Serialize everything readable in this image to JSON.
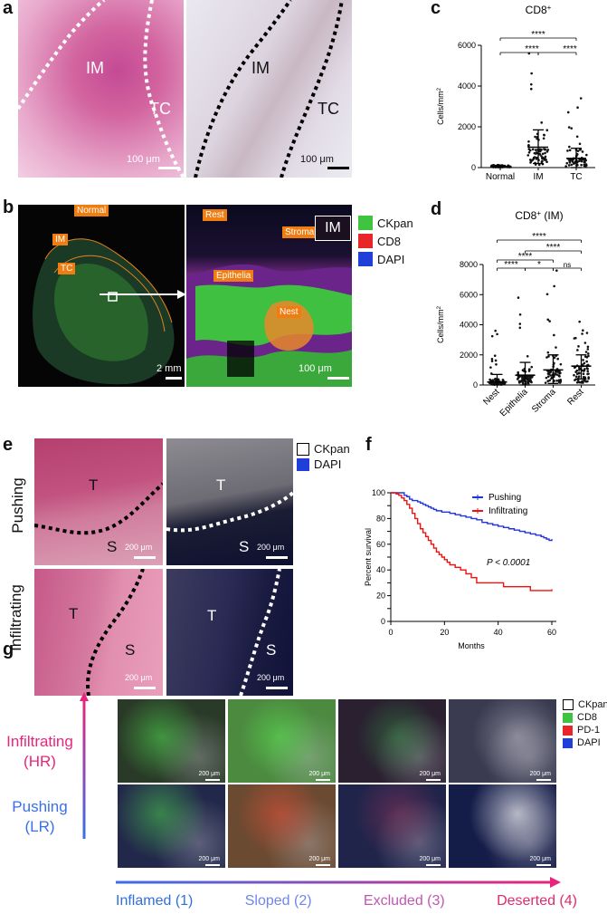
{
  "panels": {
    "a": "a",
    "b": "b",
    "c": "c",
    "d": "d",
    "e": "e",
    "f": "f",
    "g": "g"
  },
  "panel_a": {
    "left": {
      "im": "IM",
      "tc": "TC",
      "scale": "100 μm"
    },
    "right": {
      "im": "IM",
      "tc": "TC",
      "scale": "100 μm"
    }
  },
  "panel_b": {
    "left_tags": {
      "normal": "Normal",
      "im": "IM",
      "tc": "TC"
    },
    "left_scale": "2 mm",
    "right_tags": {
      "rest": "Rest",
      "stroma": "Stroma",
      "epithelia": "Epithelia",
      "nest": "Nest"
    },
    "right_box": "IM",
    "right_scale": "100 μm",
    "legend": [
      {
        "label": "CKpan",
        "color": "#3ec43e"
      },
      {
        "label": "CD8",
        "color": "#e8262a"
      },
      {
        "label": "DAPI",
        "color": "#1f3fd8"
      }
    ]
  },
  "panel_e": {
    "row_labels": {
      "top": "Pushing",
      "bottom": "Infiltrating"
    },
    "tiles": {
      "tl": {
        "t": "T",
        "s": "S",
        "scale": "200 μm"
      },
      "tr": {
        "t": "T",
        "s": "S",
        "scale": "200 μm"
      },
      "bl": {
        "t": "T",
        "s": "S",
        "scale": "200 μm"
      },
      "br": {
        "t": "T",
        "s": "S",
        "scale": "200 μm"
      }
    },
    "legend": [
      {
        "label": "CKpan",
        "color": "#ffffff"
      },
      {
        "label": "DAPI",
        "color": "#1f3fd8"
      }
    ]
  },
  "panel_g": {
    "side_top": [
      "Infiltrating",
      "(HR)"
    ],
    "side_bottom": [
      "Pushing",
      "(LR)"
    ],
    "scale": "200 μm",
    "categories": [
      "Inflamed (1)",
      "Sloped (2)",
      "Excluded (3)",
      "Deserted (4)"
    ],
    "category_colors": [
      "#2f6fe0",
      "#6f86e8",
      "#c257b0",
      "#e02a6e"
    ],
    "legend": [
      {
        "label": "CKpan",
        "color": "#ffffff"
      },
      {
        "label": "CD8",
        "color": "#3ec43e"
      },
      {
        "label": "PD-1",
        "color": "#e8262a"
      },
      {
        "label": "DAPI",
        "color": "#1f3fd8"
      }
    ]
  },
  "chart_data": [
    {
      "id": "c",
      "type": "scatter",
      "title": "CD8+",
      "ylabel": "Cells/mm2",
      "categories": [
        "Normal",
        "IM",
        "TC"
      ],
      "ylim": [
        0,
        6000
      ],
      "yticks": [
        "0",
        "2000",
        "4000",
        "6000"
      ],
      "ytick_values": [
        0,
        2000,
        4000,
        6000
      ],
      "means": [
        60,
        1000,
        450
      ],
      "sd": [
        [
          20,
          110
        ],
        [
          200,
          1850
        ],
        [
          0,
          950
        ]
      ],
      "max_points": [
        120,
        5600,
        3400
      ],
      "significance": [
        {
          "label": "****",
          "pair": [
            "Normal",
            "TC"
          ]
        },
        {
          "label": "****",
          "pair": [
            "Normal",
            "IM"
          ]
        },
        {
          "label": "****",
          "pair": [
            "IM",
            "TC"
          ]
        }
      ]
    },
    {
      "id": "d",
      "type": "scatter",
      "title": "CD8+ (IM)",
      "ylabel": "Cells/mm2",
      "categories": [
        "Nest",
        "Epithelia",
        "Stroma",
        "Rest"
      ],
      "ylim": [
        0,
        8000
      ],
      "yticks": [
        "0",
        "2000",
        "4000",
        "6000",
        "8000"
      ],
      "ytick_values": [
        0,
        2000,
        4000,
        6000,
        8000
      ],
      "means": [
        200,
        650,
        1000,
        1250
      ],
      "sd": [
        [
          0,
          700
        ],
        [
          0,
          1500
        ],
        [
          100,
          2000
        ],
        [
          400,
          2000
        ]
      ],
      "max_points": [
        3600,
        5800,
        7600,
        4200
      ],
      "significance": [
        {
          "label": "****",
          "pair": [
            "Nest",
            "Rest"
          ]
        },
        {
          "label": "****",
          "pair": [
            "Epithelia",
            "Rest"
          ]
        },
        {
          "label": "****",
          "pair": [
            "Nest",
            "Stroma"
          ]
        },
        {
          "label": "****",
          "pair": [
            "Nest",
            "Epithelia"
          ]
        },
        {
          "label": "*",
          "pair": [
            "Epithelia",
            "Stroma"
          ]
        },
        {
          "label": "ns",
          "pair": [
            "Stroma",
            "Rest"
          ]
        }
      ]
    },
    {
      "id": "f",
      "type": "line",
      "ylabel": "Percent survival",
      "xlabel": "Months",
      "xlim": [
        0,
        60
      ],
      "ylim": [
        0,
        100
      ],
      "xticks": [
        "0",
        "20",
        "40",
        "60"
      ],
      "xtick_values": [
        0,
        20,
        40,
        60
      ],
      "yticks": [
        "0",
        "10",
        "20",
        "30",
        "40",
        "50",
        "60",
        "70",
        "80",
        "90",
        "100"
      ],
      "ytick_values": [
        0,
        10,
        20,
        30,
        40,
        50,
        60,
        70,
        80,
        90,
        100
      ],
      "annotation": "P < 0.0001",
      "series": [
        {
          "name": "Pushing",
          "color": "#2233dd",
          "x": [
            0,
            3,
            5,
            6,
            7,
            8,
            10,
            11,
            12,
            13,
            14,
            15,
            16,
            17,
            18,
            19,
            20,
            22,
            24,
            26,
            28,
            30,
            32,
            34,
            36,
            38,
            40,
            42,
            44,
            46,
            48,
            50,
            52,
            54,
            56,
            57,
            58,
            59,
            60
          ],
          "y": [
            100,
            100,
            98,
            97,
            95,
            94,
            93,
            92,
            91,
            90,
            89,
            88,
            87,
            86,
            86,
            85,
            85,
            84,
            83,
            82,
            81,
            80,
            79,
            77,
            76,
            75,
            74,
            73,
            72,
            71,
            70,
            69,
            68,
            67,
            66,
            65,
            64,
            63,
            64
          ]
        },
        {
          "name": "Infiltrating",
          "color": "#ee1111",
          "x": [
            0,
            2,
            3,
            4,
            5,
            6,
            7,
            8,
            9,
            10,
            11,
            12,
            13,
            14,
            15,
            16,
            17,
            18,
            19,
            20,
            21,
            22,
            24,
            26,
            28,
            30,
            32,
            35,
            38,
            42,
            47,
            52,
            55,
            58,
            60
          ],
          "y": [
            100,
            99,
            98,
            96,
            94,
            91,
            88,
            84,
            80,
            76,
            72,
            69,
            66,
            63,
            60,
            57,
            54,
            52,
            50,
            48,
            46,
            44,
            42,
            40,
            37,
            34,
            30,
            30,
            30,
            27,
            27,
            24,
            24,
            24,
            25
          ]
        }
      ]
    }
  ]
}
